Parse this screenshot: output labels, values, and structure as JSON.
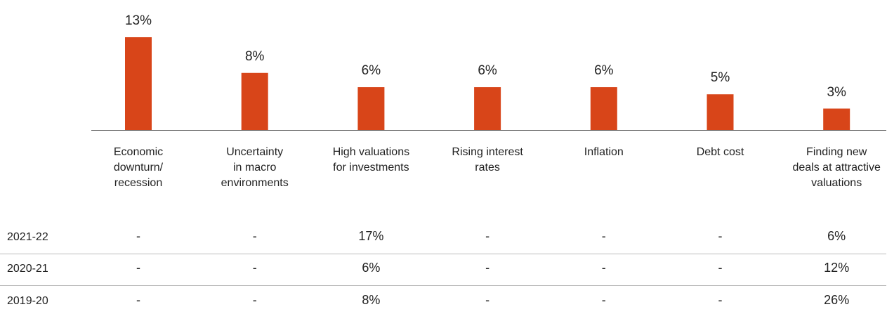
{
  "chart_data": {
    "type": "bar",
    "categories": [
      "Economic\ndownturn/\nrecession",
      "Uncertainty\nin macro\nenvironments",
      "High valuations\nfor investments",
      "Rising interest\nrates",
      "Inflation",
      "Debt cost",
      "Finding new\ndeals at attractive\nvaluations"
    ],
    "values": [
      13,
      8,
      6,
      6,
      6,
      5,
      3
    ],
    "value_labels": [
      "13%",
      "8%",
      "6%",
      "6%",
      "6%",
      "5%",
      "3%"
    ],
    "color": "#d84519"
  },
  "table": {
    "rows": [
      {
        "label": "2021-22",
        "cells": [
          "-",
          "-",
          "17%",
          "-",
          "-",
          "-",
          "6%"
        ]
      },
      {
        "label": "2020-21",
        "cells": [
          "-",
          "-",
          "6%",
          "-",
          "-",
          "-",
          "12%"
        ]
      },
      {
        "label": "2019-20",
        "cells": [
          "-",
          "-",
          "8%",
          "-",
          "-",
          "-",
          "26%"
        ]
      }
    ]
  }
}
